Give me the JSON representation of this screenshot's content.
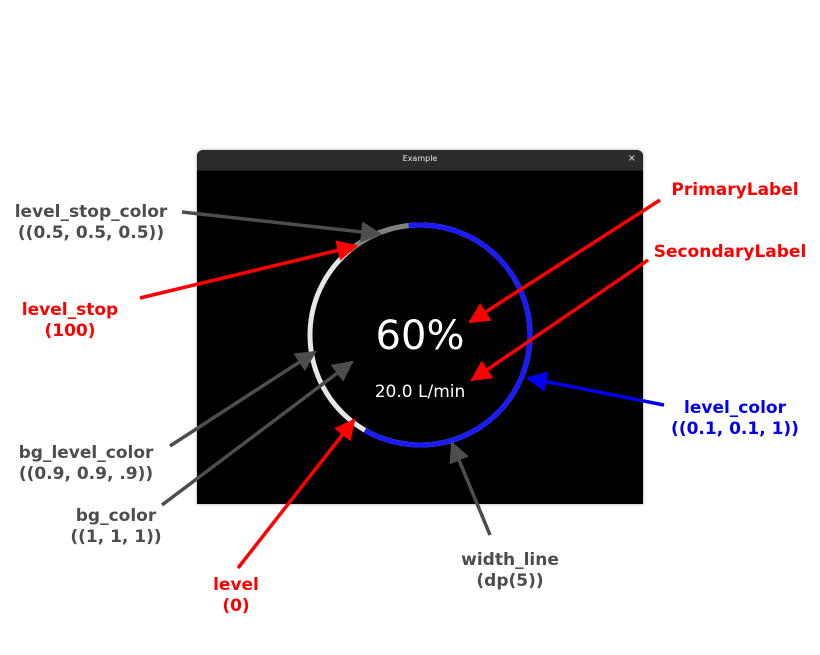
{
  "window": {
    "title": "Example",
    "close_icon": "close-icon"
  },
  "gauge": {
    "level": 60,
    "level_stop": 100,
    "primary_label": "60%",
    "secondary_label": "20.0 L/min",
    "level_color": "#1a1aff",
    "bg_level_color": "#e6e6e6",
    "level_stop_color": "#808080",
    "bg_color": "#ffffff"
  },
  "annotations": {
    "level_stop_color": {
      "line1": "level_stop_color",
      "line2": "((0.5, 0.5, 0.5))"
    },
    "level_stop": {
      "line1": "level_stop",
      "line2": "(100)"
    },
    "bg_level_color": {
      "line1": "bg_level_color",
      "line2": "((0.9, 0.9, .9))"
    },
    "bg_color": {
      "line1": "bg_color",
      "line2": "((1, 1, 1))"
    },
    "level": {
      "line1": "level",
      "line2": "(0)"
    },
    "primary_label": {
      "line1": "PrimaryLabel"
    },
    "secondary_label": {
      "line1": "SecondaryLabel"
    },
    "level_color": {
      "line1": "level_color",
      "line2": "((0.1, 0.1, 1))"
    },
    "width_line": {
      "line1": "width_line",
      "line2": "(dp(5))"
    }
  },
  "colors": {
    "annotation_red": "#ff0000",
    "annotation_gray": "#4d4d4d",
    "annotation_blue": "#0000ee"
  }
}
